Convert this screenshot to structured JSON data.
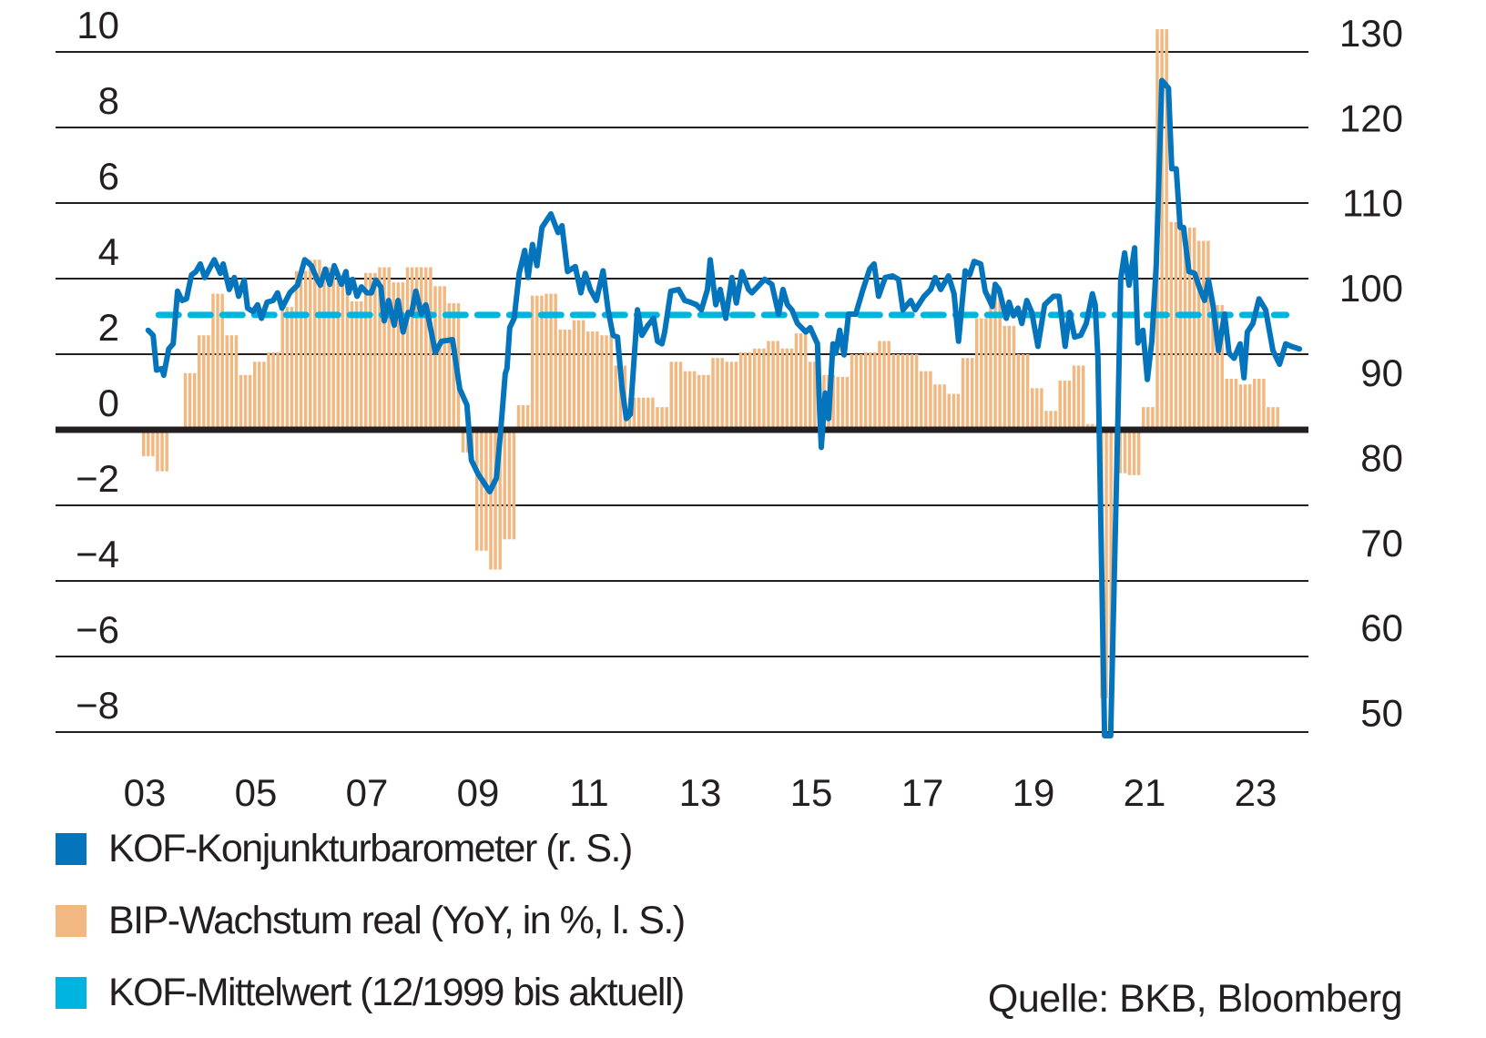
{
  "chart_data": {
    "type": "bar+line",
    "title": "",
    "xlabel": "",
    "ylabel_left": "BIP-Wachstum real (YoY, in %)",
    "ylabel_right": "KOF-Konjunkturbarometer",
    "x_ticks": [
      "03",
      "05",
      "07",
      "09",
      "11",
      "13",
      "15",
      "17",
      "19",
      "21",
      "23"
    ],
    "x_tick_years": [
      2003,
      2005,
      2007,
      2009,
      2011,
      2013,
      2015,
      2017,
      2019,
      2021,
      2023
    ],
    "y_left_ticks": [
      "10",
      "8",
      "6",
      "4",
      "2",
      "0",
      "−2",
      "−4",
      "−6",
      "−8"
    ],
    "y_left_tick_values": [
      10,
      8,
      6,
      4,
      2,
      0,
      -2,
      -4,
      -6,
      -8
    ],
    "y_left_range": [
      -8,
      10
    ],
    "y_right_ticks": [
      "130",
      "120",
      "110",
      "100",
      "90",
      "80",
      "70",
      "60",
      "50"
    ],
    "y_right_tick_values": [
      130,
      120,
      110,
      100,
      90,
      80,
      70,
      60,
      50
    ],
    "y_right_range": [
      50,
      130
    ],
    "grid": true,
    "legend_position": "bottom-left",
    "series": [
      {
        "name": "KOF-Konjunkturbarometer (r. S.)",
        "type": "line",
        "axis": "right",
        "color": "#0474bd",
        "points": [
          [
            2003.11,
            98.2
          ],
          [
            2003.2,
            97.6
          ],
          [
            2003.26,
            93.5
          ],
          [
            2003.36,
            93.7
          ],
          [
            2003.39,
            92.9
          ],
          [
            2003.48,
            96.0
          ],
          [
            2003.56,
            96.6
          ],
          [
            2003.64,
            102.8
          ],
          [
            2003.72,
            101.7
          ],
          [
            2003.8,
            101.9
          ],
          [
            2003.89,
            104.7
          ],
          [
            2003.97,
            105.1
          ],
          [
            2004.05,
            106.0
          ],
          [
            2004.13,
            104.4
          ],
          [
            2004.3,
            106.5
          ],
          [
            2004.41,
            104.9
          ],
          [
            2004.46,
            106.0
          ],
          [
            2004.57,
            103.0
          ],
          [
            2004.66,
            104.4
          ],
          [
            2004.74,
            102.2
          ],
          [
            2004.84,
            104.1
          ],
          [
            2004.9,
            100.8
          ],
          [
            2005.0,
            100.4
          ],
          [
            2005.08,
            101.2
          ],
          [
            2005.15,
            99.6
          ],
          [
            2005.25,
            101.5
          ],
          [
            2005.36,
            101.7
          ],
          [
            2005.44,
            102.6
          ],
          [
            2005.52,
            100.8
          ],
          [
            2005.66,
            102.6
          ],
          [
            2005.72,
            103.0
          ],
          [
            2005.8,
            103.5
          ],
          [
            2005.93,
            106.5
          ],
          [
            2006.05,
            105.8
          ],
          [
            2006.15,
            104.2
          ],
          [
            2006.21,
            103.5
          ],
          [
            2006.3,
            105.4
          ],
          [
            2006.38,
            103.6
          ],
          [
            2006.46,
            105.8
          ],
          [
            2006.59,
            103.6
          ],
          [
            2006.67,
            105.1
          ],
          [
            2006.72,
            102.6
          ],
          [
            2006.79,
            104.2
          ],
          [
            2006.87,
            102.2
          ],
          [
            2006.95,
            103.3
          ],
          [
            2007.05,
            102.6
          ],
          [
            2007.13,
            102.6
          ],
          [
            2007.21,
            104.1
          ],
          [
            2007.3,
            103.3
          ],
          [
            2007.36,
            99.3
          ],
          [
            2007.44,
            101.7
          ],
          [
            2007.54,
            98.8
          ],
          [
            2007.61,
            101.7
          ],
          [
            2007.7,
            98.0
          ],
          [
            2007.79,
            100.3
          ],
          [
            2007.85,
            100.1
          ],
          [
            2007.93,
            102.8
          ],
          [
            2008.03,
            100.1
          ],
          [
            2008.11,
            101.2
          ],
          [
            2008.28,
            95.6
          ],
          [
            2008.39,
            96.9
          ],
          [
            2008.59,
            97.1
          ],
          [
            2008.72,
            91.3
          ],
          [
            2008.85,
            89.4
          ],
          [
            2008.93,
            82.9
          ],
          [
            2009.05,
            81.3
          ],
          [
            2009.21,
            79.7
          ],
          [
            2009.26,
            79.2
          ],
          [
            2009.38,
            80.8
          ],
          [
            2009.46,
            86.7
          ],
          [
            2009.54,
            93.1
          ],
          [
            2009.57,
            93.7
          ],
          [
            2009.62,
            98.5
          ],
          [
            2009.7,
            99.6
          ],
          [
            2009.79,
            104.9
          ],
          [
            2009.89,
            107.6
          ],
          [
            2009.95,
            104.4
          ],
          [
            2010.03,
            108.3
          ],
          [
            2010.11,
            105.8
          ],
          [
            2010.2,
            110.3
          ],
          [
            2010.36,
            111.9
          ],
          [
            2010.49,
            109.7
          ],
          [
            2010.56,
            110.5
          ],
          [
            2010.66,
            105.1
          ],
          [
            2010.8,
            105.7
          ],
          [
            2010.9,
            102.6
          ],
          [
            2010.98,
            104.9
          ],
          [
            2011.07,
            103.0
          ],
          [
            2011.18,
            101.7
          ],
          [
            2011.3,
            105.2
          ],
          [
            2011.39,
            100.6
          ],
          [
            2011.48,
            97.6
          ],
          [
            2011.56,
            97.4
          ],
          [
            2011.64,
            91.5
          ],
          [
            2011.72,
            87.8
          ],
          [
            2011.79,
            88.3
          ],
          [
            2011.92,
            100.6
          ],
          [
            2012.0,
            97.6
          ],
          [
            2012.11,
            98.8
          ],
          [
            2012.21,
            99.6
          ],
          [
            2012.28,
            96.9
          ],
          [
            2012.36,
            96.6
          ],
          [
            2012.41,
            98.0
          ],
          [
            2012.52,
            102.8
          ],
          [
            2012.66,
            103.0
          ],
          [
            2012.77,
            101.7
          ],
          [
            2012.87,
            101.5
          ],
          [
            2012.98,
            101.2
          ],
          [
            2013.07,
            100.6
          ],
          [
            2013.18,
            103.0
          ],
          [
            2013.23,
            106.5
          ],
          [
            2013.33,
            101.2
          ],
          [
            2013.41,
            103.0
          ],
          [
            2013.51,
            99.6
          ],
          [
            2013.62,
            104.4
          ],
          [
            2013.7,
            101.4
          ],
          [
            2013.8,
            105.1
          ],
          [
            2013.92,
            103.0
          ],
          [
            2013.98,
            102.6
          ],
          [
            2014.08,
            103.3
          ],
          [
            2014.21,
            104.2
          ],
          [
            2014.34,
            103.6
          ],
          [
            2014.46,
            100.1
          ],
          [
            2014.54,
            103.0
          ],
          [
            2014.62,
            101.2
          ],
          [
            2014.7,
            100.6
          ],
          [
            2014.8,
            99.0
          ],
          [
            2014.95,
            98.0
          ],
          [
            2015.03,
            98.5
          ],
          [
            2015.16,
            96.6
          ],
          [
            2015.2,
            88.6
          ],
          [
            2015.23,
            84.4
          ],
          [
            2015.3,
            90.8
          ],
          [
            2015.36,
            87.8
          ],
          [
            2015.44,
            96.6
          ],
          [
            2015.49,
            95.5
          ],
          [
            2015.56,
            98.2
          ],
          [
            2015.64,
            95.3
          ],
          [
            2015.72,
            100.1
          ],
          [
            2015.85,
            100.1
          ],
          [
            2015.97,
            102.8
          ],
          [
            2016.1,
            105.4
          ],
          [
            2016.18,
            106.0
          ],
          [
            2016.26,
            102.2
          ],
          [
            2016.38,
            104.4
          ],
          [
            2016.51,
            104.6
          ],
          [
            2016.62,
            104.2
          ],
          [
            2016.7,
            100.6
          ],
          [
            2016.84,
            101.7
          ],
          [
            2016.92,
            100.6
          ],
          [
            2017.08,
            102.2
          ],
          [
            2017.2,
            103.0
          ],
          [
            2017.28,
            104.4
          ],
          [
            2017.38,
            103.0
          ],
          [
            2017.52,
            104.6
          ],
          [
            2017.62,
            102.5
          ],
          [
            2017.7,
            96.9
          ],
          [
            2017.82,
            105.2
          ],
          [
            2017.9,
            104.7
          ],
          [
            2017.98,
            106.3
          ],
          [
            2018.1,
            106.0
          ],
          [
            2018.18,
            102.8
          ],
          [
            2018.31,
            101.0
          ],
          [
            2018.36,
            103.6
          ],
          [
            2018.43,
            103.0
          ],
          [
            2018.56,
            99.6
          ],
          [
            2018.61,
            101.5
          ],
          [
            2018.69,
            99.9
          ],
          [
            2018.77,
            100.8
          ],
          [
            2018.84,
            99.0
          ],
          [
            2018.93,
            101.7
          ],
          [
            2019.02,
            100.3
          ],
          [
            2019.13,
            96.3
          ],
          [
            2019.25,
            101.2
          ],
          [
            2019.33,
            101.7
          ],
          [
            2019.41,
            102.2
          ],
          [
            2019.51,
            102.2
          ],
          [
            2019.62,
            96.3
          ],
          [
            2019.7,
            100.3
          ],
          [
            2019.79,
            97.4
          ],
          [
            2019.9,
            97.6
          ],
          [
            2020.0,
            99.0
          ],
          [
            2020.11,
            102.5
          ],
          [
            2020.16,
            101.2
          ],
          [
            2020.21,
            95.0
          ],
          [
            2020.33,
            50.0
          ],
          [
            2020.44,
            50.0
          ],
          [
            2020.57,
            88.0
          ],
          [
            2020.62,
            104.2
          ],
          [
            2020.69,
            107.3
          ],
          [
            2020.77,
            103.5
          ],
          [
            2020.87,
            107.9
          ],
          [
            2020.93,
            96.7
          ],
          [
            2021.02,
            98.2
          ],
          [
            2021.1,
            92.4
          ],
          [
            2021.18,
            96.9
          ],
          [
            2021.26,
            106.0
          ],
          [
            2021.36,
            127.6
          ],
          [
            2021.48,
            126.7
          ],
          [
            2021.54,
            117.2
          ],
          [
            2021.62,
            117.2
          ],
          [
            2021.69,
            110.3
          ],
          [
            2021.75,
            110.3
          ],
          [
            2021.85,
            105.1
          ],
          [
            2021.95,
            104.9
          ],
          [
            2022.05,
            103.0
          ],
          [
            2022.13,
            101.7
          ],
          [
            2022.2,
            104.1
          ],
          [
            2022.28,
            101.2
          ],
          [
            2022.38,
            95.8
          ],
          [
            2022.49,
            100.1
          ],
          [
            2022.57,
            95.5
          ],
          [
            2022.66,
            94.9
          ],
          [
            2022.77,
            96.6
          ],
          [
            2022.84,
            92.6
          ],
          [
            2022.9,
            98.0
          ],
          [
            2023.0,
            99.0
          ],
          [
            2023.11,
            101.9
          ],
          [
            2023.23,
            100.6
          ],
          [
            2023.36,
            95.8
          ],
          [
            2023.48,
            94.2
          ],
          [
            2023.59,
            96.6
          ],
          [
            2023.69,
            96.3
          ],
          [
            2023.84,
            96.0
          ]
        ]
      },
      {
        "name": "BIP-Wachstum real (YoY, in %, l. S.)",
        "type": "bar",
        "axis": "left",
        "color": "#f2b882",
        "start": "2003-Q1",
        "frequency": "quarterly",
        "values": [
          -0.7,
          -1.1,
          0.0,
          1.5,
          2.5,
          3.6,
          2.5,
          1.45,
          1.8,
          2.05,
          3.25,
          4.2,
          4.5,
          4.3,
          4.0,
          3.4,
          4.15,
          4.3,
          3.9,
          4.3,
          4.3,
          3.8,
          3.35,
          -0.6,
          -3.2,
          -3.7,
          -2.9,
          0.65,
          3.55,
          3.6,
          2.65,
          2.9,
          2.6,
          2.5,
          1.7,
          0.85,
          0.85,
          0.6,
          1.8,
          1.55,
          1.45,
          1.9,
          1.8,
          2.05,
          2.15,
          2.35,
          2.15,
          2.55,
          1.8,
          1.45,
          1.4,
          2.0,
          2.05,
          2.35,
          2.0,
          2.0,
          1.55,
          1.2,
          0.95,
          1.9,
          2.95,
          3.6,
          2.75,
          2.0,
          1.1,
          0.5,
          1.3,
          1.7,
          0.15,
          -7.1,
          -1.15,
          -1.2,
          0.6,
          10.6,
          5.5,
          5.35,
          5.0,
          3.3,
          1.35,
          1.2,
          1.35,
          0.6
        ]
      },
      {
        "name": "KOF-Mittelwert (12/1999 bis aktuell)",
        "type": "line",
        "style": "dashed",
        "axis": "right",
        "color": "#00b4e0",
        "value": 100,
        "x_range": [
          2003.3,
          2023.6
        ]
      }
    ]
  },
  "legend": [
    {
      "label": "KOF-Konjunkturbarometer (r. S.)",
      "color": "#0474bd"
    },
    {
      "label": "BIP-Wachstum real (YoY, in %, l. S.)",
      "color": "#f2b882"
    },
    {
      "label": "KOF-Mittelwert (12/1999 bis aktuell)",
      "color": "#00b4e0"
    }
  ],
  "source": "Quelle: BKB, Bloomberg",
  "colors": {
    "grid": "#231f20",
    "text": "#231f20"
  }
}
